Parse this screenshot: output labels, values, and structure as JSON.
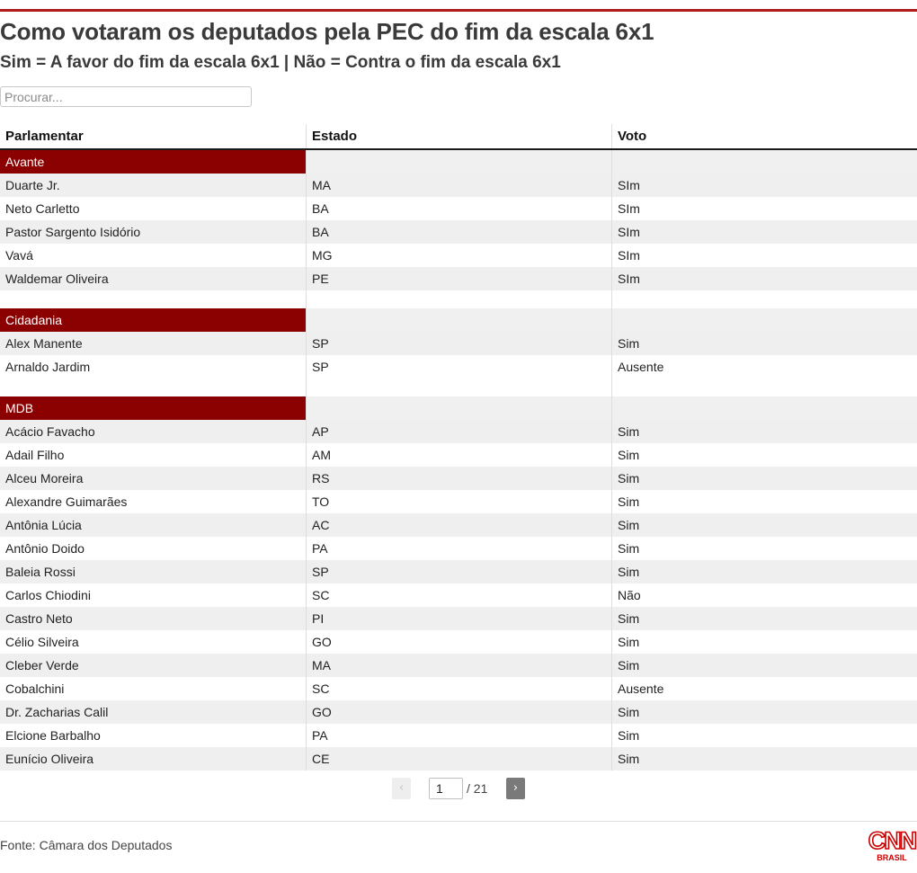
{
  "title": "Como votaram os deputados pela PEC do fim da escala 6x1",
  "subtitle": "Sim = A favor do fim da escala 6x1 | Não = Contra o fim da escala 6x1",
  "search": {
    "placeholder": "Procurar..."
  },
  "table": {
    "headers": [
      "Parlamentar",
      "Estado",
      "Voto"
    ],
    "groups": [
      {
        "name": "Avante",
        "rows": [
          [
            "Duarte Jr.",
            "MA",
            "SIm"
          ],
          [
            "Neto Carletto",
            "BA",
            "SIm"
          ],
          [
            "Pastor Sargento Isidório",
            "BA",
            "SIm"
          ],
          [
            "Vavá",
            "MG",
            "SIm"
          ],
          [
            "Waldemar Oliveira",
            "PE",
            "SIm"
          ]
        ]
      },
      {
        "name": "Cidadania",
        "rows": [
          [
            "Alex Manente",
            "SP",
            "Sim"
          ],
          [
            "Arnaldo Jardim",
            "SP",
            "Ausente"
          ]
        ]
      },
      {
        "name": "MDB",
        "rows": [
          [
            "Acácio Favacho",
            "AP",
            "Sim"
          ],
          [
            "Adail Filho",
            "AM",
            "Sim"
          ],
          [
            "Alceu Moreira",
            "RS",
            "Sim"
          ],
          [
            "Alexandre Guimarães",
            "TO",
            "Sim"
          ],
          [
            "Antônia Lúcia",
            "AC",
            "Sim"
          ],
          [
            "Antônio Doido",
            "PA",
            "Sim"
          ],
          [
            "Baleia Rossi",
            "SP",
            "Sim"
          ],
          [
            "Carlos Chiodini",
            "SC",
            "Não"
          ],
          [
            "Castro Neto",
            "PI",
            "Sim"
          ],
          [
            "Célio Silveira",
            "GO",
            "Sim"
          ],
          [
            "Cleber Verde",
            "MA",
            "Sim"
          ],
          [
            "Cobalchini",
            "SC",
            "Ausente"
          ],
          [
            "Dr. Zacharias Calil",
            "GO",
            "Sim"
          ],
          [
            "Elcione Barbalho",
            "PA",
            "Sim"
          ],
          [
            "Eunício Oliveira",
            "CE",
            "Sim"
          ]
        ]
      }
    ]
  },
  "pagination": {
    "current": "1",
    "total": "/ 21",
    "prev_icon": "‹",
    "next_icon": "›"
  },
  "footer": {
    "source": "Fonte: Câmara dos Deputados",
    "logo_text": "CNN",
    "logo_sub": "BRASIL"
  },
  "colors": {
    "accent": "#b01c1c",
    "group_header": "#8b0000"
  }
}
